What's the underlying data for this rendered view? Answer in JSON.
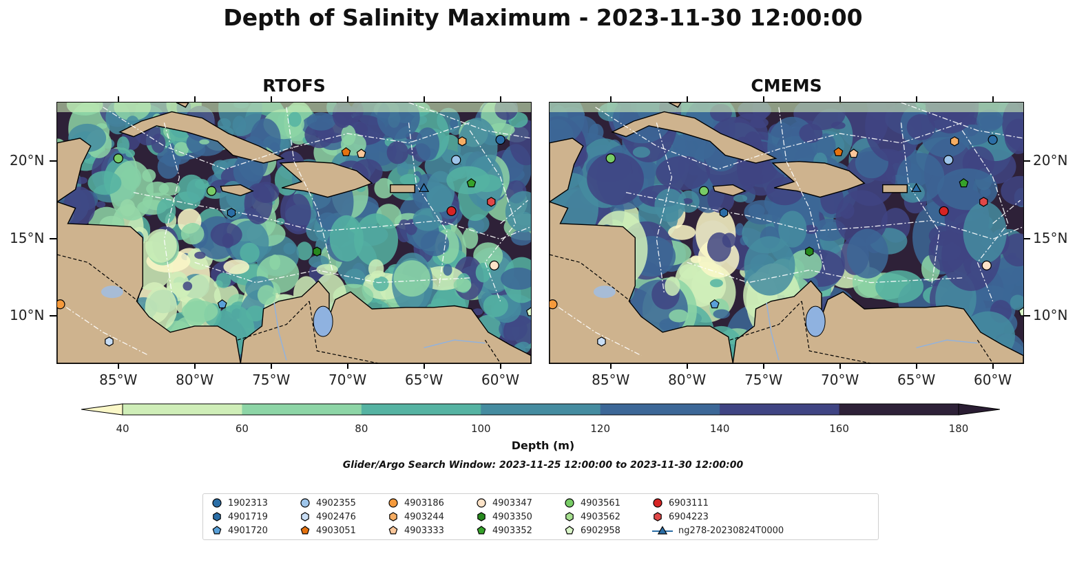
{
  "title": "Depth of Salinity Maximum - 2023-11-30 12:00:00",
  "panels": [
    {
      "name": "RTOFS",
      "variant": "rtofs"
    },
    {
      "name": "CMEMS",
      "variant": "cmems"
    }
  ],
  "x_ticks": [
    "85°W",
    "80°W",
    "75°W",
    "70°W",
    "65°W",
    "60°W"
  ],
  "y_ticks": [
    "20°N",
    "15°N",
    "10°N"
  ],
  "colorbar": {
    "label": "Depth (m)",
    "ticks": [
      "40",
      "60",
      "80",
      "100",
      "120",
      "140",
      "160",
      "180"
    ],
    "colors": [
      "#fbf8c8",
      "#cfeeb8",
      "#8dd5a6",
      "#55b3a2",
      "#458ca0",
      "#3c6797",
      "#3f4483",
      "#2e2138",
      "#2a1d33"
    ]
  },
  "search_window": "Glider/Argo Search Window: 2023-11-25 12:00:00 to 2023-11-30 12:00:00",
  "legend": [
    {
      "label": "1902313",
      "marker": "circle",
      "color": "#2b6ea6"
    },
    {
      "label": "4901719",
      "marker": "hexagon",
      "color": "#2b6ea6"
    },
    {
      "label": "4901720",
      "marker": "pentagon",
      "color": "#5aa0d8"
    },
    {
      "label": "4902355",
      "marker": "circle",
      "color": "#9ec5ea"
    },
    {
      "label": "4902476",
      "marker": "hexagon",
      "color": "#c8ddf4"
    },
    {
      "label": "4903051",
      "marker": "pentagon",
      "color": "#e5720f"
    },
    {
      "label": "4903186",
      "marker": "circle",
      "color": "#f59a3c"
    },
    {
      "label": "4903244",
      "marker": "hexagon",
      "color": "#f6ad63"
    },
    {
      "label": "4903333",
      "marker": "pentagon",
      "color": "#fbc79a"
    },
    {
      "label": "4903347",
      "marker": "circle",
      "color": "#fde3c8"
    },
    {
      "label": "4903350",
      "marker": "hexagon",
      "color": "#27891e"
    },
    {
      "label": "4903352",
      "marker": "pentagon",
      "color": "#36a22b"
    },
    {
      "label": "4903561",
      "marker": "circle",
      "color": "#78cc66"
    },
    {
      "label": "4903562",
      "marker": "hexagon",
      "color": "#a6e08f"
    },
    {
      "label": "6902958",
      "marker": "pentagon",
      "color": "#d9f5c8"
    },
    {
      "label": "6903111",
      "marker": "circle",
      "color": "#d62424"
    },
    {
      "label": "6904223",
      "marker": "hexagon",
      "color": "#e04848"
    },
    {
      "label": "ng278-20230824T0000",
      "marker": "triangle-line",
      "color": "#2b6ea6"
    }
  ],
  "observations": [
    {
      "id": "1902313",
      "lon": -60.0,
      "lat": 21.4
    },
    {
      "id": "4902355",
      "lon": -62.9,
      "lat": 20.1
    },
    {
      "id": "4903244",
      "lon": -62.5,
      "lat": 21.3
    },
    {
      "id": "4903051",
      "lon": -70.1,
      "lat": 20.6
    },
    {
      "id": "4903333",
      "lon": -69.1,
      "lat": 20.5
    },
    {
      "id": "4903561",
      "lon": -85.0,
      "lat": 20.2
    },
    {
      "id": "4903561",
      "lon": -78.9,
      "lat": 18.1
    },
    {
      "id": "4901719",
      "lon": -77.6,
      "lat": 16.7
    },
    {
      "id": "4903352",
      "lon": -61.9,
      "lat": 18.6
    },
    {
      "id": "ng278-20230824T0000",
      "lon": -65.0,
      "lat": 18.3
    },
    {
      "id": "6904223",
      "lon": -60.6,
      "lat": 17.4
    },
    {
      "id": "6903111",
      "lon": -63.2,
      "lat": 16.8
    },
    {
      "id": "4903350",
      "lon": -72.0,
      "lat": 14.2
    },
    {
      "id": "4903347",
      "lon": -60.4,
      "lat": 13.3
    },
    {
      "id": "4903186",
      "lon": -88.8,
      "lat": 10.8
    },
    {
      "id": "4901720",
      "lon": -78.2,
      "lat": 10.8
    },
    {
      "id": "4902476",
      "lon": -85.6,
      "lat": 8.4
    },
    {
      "id": "6902958",
      "lon": -58.0,
      "lat": 10.3
    }
  ]
}
